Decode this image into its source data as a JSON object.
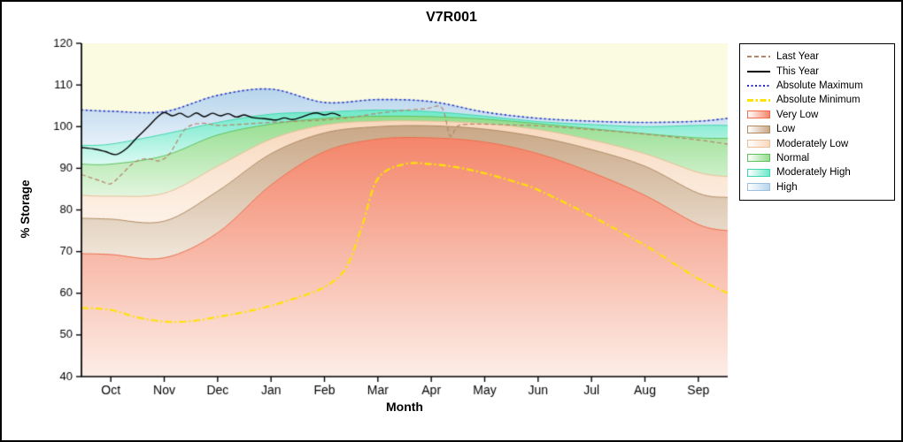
{
  "chart_data": {
    "type": "area",
    "title": "V7R001",
    "xlabel": "Month",
    "ylabel": "% Storage",
    "ylim": [
      40,
      120
    ],
    "xlim": [
      -0.55,
      11.55
    ],
    "yticks": [
      40,
      50,
      60,
      70,
      80,
      90,
      100,
      110,
      120
    ],
    "x_tick_labels": [
      "Oct",
      "Nov",
      "Dec",
      "Jan",
      "Feb",
      "Mar",
      "Apr",
      "May",
      "Jun",
      "Jul",
      "Aug",
      "Sep"
    ],
    "grid": false,
    "legend_position": "outside-right",
    "plot_bg": "#fafbe0",
    "axis_color": "#000000",
    "band_x": [
      -0.55,
      0,
      1,
      2,
      3,
      4,
      5,
      6,
      7,
      8,
      9,
      10,
      11,
      11.55
    ],
    "bands": [
      {
        "name": "Very Low",
        "fill": "#f4866b",
        "fill_light": "#fdeee8",
        "stroke": "#ef6b4a",
        "top": [
          69.5,
          69.3,
          68.5,
          74.5,
          86,
          94,
          97,
          97.3,
          96.3,
          93.5,
          89,
          83.5,
          76.5,
          75
        ]
      },
      {
        "name": "Low",
        "fill": "#c9a887",
        "fill_light": "#f0e6da",
        "stroke": "#b08a63",
        "top": [
          78,
          77.8,
          77.3,
          84.5,
          93.5,
          98.5,
          100,
          100.2,
          99.4,
          97.5,
          94.5,
          90.5,
          84,
          83
        ]
      },
      {
        "name": "Moderately Low",
        "fill": "#f8d9be",
        "fill_light": "#fdf2e8",
        "stroke": "#eabf97",
        "top": [
          83.5,
          83.3,
          84,
          90.5,
          97,
          100.4,
          101.3,
          101.3,
          100.7,
          99.3,
          96.8,
          93.5,
          89,
          88
        ]
      },
      {
        "name": "Normal",
        "fill": "#93dd8d",
        "fill_light": "#e2f6df",
        "stroke": "#5cc25c",
        "top": [
          91,
          91,
          93,
          98,
          100.6,
          102,
          102.5,
          102.4,
          101.8,
          100.7,
          99.5,
          98.3,
          97.3,
          97.2
        ]
      },
      {
        "name": "Moderately High",
        "fill": "#6fe9c9",
        "fill_light": "#dcfaf3",
        "stroke": "#3fd6ae",
        "top": [
          95.5,
          95.8,
          98.2,
          101,
          103,
          103.5,
          104,
          103.6,
          102.5,
          101.2,
          100.5,
          100,
          100.3,
          100.3
        ]
      },
      {
        "name": "High",
        "fill": "#b7d5ec",
        "fill_light": "#e8f1fa",
        "stroke": "#9abfe0",
        "top": [
          104,
          103.7,
          103.6,
          107.5,
          109,
          105.8,
          106.5,
          106,
          103.5,
          102,
          101.3,
          101,
          101.3,
          102
        ]
      }
    ],
    "lines": [
      {
        "name": "Absolute Maximum",
        "color": "#2828cc",
        "dash": [
          2,
          3
        ],
        "width": 1.6,
        "x": [
          -0.55,
          0,
          1,
          2,
          3,
          4,
          5,
          6,
          7,
          8,
          9,
          10,
          11,
          11.55
        ],
        "y": [
          104,
          103.7,
          103.6,
          107.5,
          109,
          105.8,
          106.5,
          106,
          103.5,
          102,
          101.3,
          101,
          101.3,
          102
        ]
      },
      {
        "name": "Absolute Minimum",
        "color": "#ffe205",
        "dash": [
          8,
          3,
          2,
          3
        ],
        "width": 2.2,
        "x": [
          -0.55,
          0,
          0.5,
          1,
          1.5,
          2,
          2.5,
          3,
          3.5,
          4,
          4.4,
          4.7,
          5,
          5.5,
          6,
          6.5,
          7,
          7.5,
          8,
          9,
          10,
          10.5,
          11,
          11.55
        ],
        "y": [
          56.5,
          56,
          54.2,
          53.2,
          53.3,
          54.3,
          55.5,
          57,
          59,
          61.5,
          66,
          76,
          87.5,
          91,
          91,
          90.2,
          88.8,
          87,
          84.8,
          78.5,
          71.5,
          67.5,
          63.5,
          60
        ]
      },
      {
        "name": "Last Year",
        "color": "#b5846b",
        "dash": [
          5,
          3
        ],
        "width": 1.2,
        "x": [
          -0.55,
          -0.2,
          0,
          0.2,
          0.45,
          0.7,
          0.9,
          1.1,
          1.4,
          1.7,
          2,
          2.5,
          3,
          3.5,
          4,
          4.5,
          5,
          5.5,
          5.9,
          6.2,
          6.35,
          6.5,
          6.75,
          7,
          7.5,
          8,
          9,
          10,
          11,
          11.55
        ],
        "y": [
          88.5,
          87,
          86.3,
          88.5,
          91.5,
          92.3,
          91.8,
          93.5,
          99.5,
          100.8,
          100.3,
          100.6,
          101,
          101.3,
          101.6,
          102.2,
          103.2,
          103.9,
          104.3,
          104.5,
          97.8,
          100.2,
          100.6,
          100.6,
          100.4,
          100.2,
          99.3,
          98.2,
          96.8,
          95.8
        ]
      },
      {
        "name": "This Year",
        "color": "#000000",
        "dash": [],
        "width": 1.4,
        "x": [
          -0.55,
          -0.3,
          -0.1,
          0.1,
          0.3,
          0.5,
          0.7,
          0.85,
          1.0,
          1.15,
          1.3,
          1.45,
          1.6,
          1.75,
          1.9,
          2.05,
          2.2,
          2.35,
          2.5,
          2.65,
          2.8,
          2.95,
          3.1,
          3.25,
          3.4,
          3.55,
          3.7,
          3.85,
          4.0,
          4.15,
          4.3
        ],
        "y": [
          95,
          94.6,
          94,
          93.3,
          94.8,
          97.5,
          100,
          102,
          103.4,
          102.6,
          103.2,
          102.3,
          103.3,
          102.4,
          103.2,
          102.6,
          103.1,
          102.3,
          102.8,
          102.2,
          102,
          101.8,
          101.6,
          102.1,
          101.7,
          102.2,
          102.9,
          103.3,
          102.8,
          103.2,
          102.6
        ]
      }
    ],
    "legend": [
      {
        "label": "Last Year",
        "type": "line",
        "color": "#b5846b",
        "pattern": "dashed",
        "thickness": 2
      },
      {
        "label": "This Year",
        "type": "line",
        "color": "#000000",
        "pattern": "solid",
        "thickness": 2
      },
      {
        "label": "Absolute Maximum",
        "type": "line",
        "color": "#2828cc",
        "pattern": "dotted",
        "thickness": 2
      },
      {
        "label": "Absolute Minimum",
        "type": "line",
        "color": "#ffe205",
        "pattern": "dashdot",
        "thickness": 3
      },
      {
        "label": "Very Low",
        "type": "band",
        "color": "#f4866b",
        "stroke": "#ef6b4a"
      },
      {
        "label": "Low",
        "type": "band",
        "color": "#c9a887",
        "stroke": "#b08a63"
      },
      {
        "label": "Moderately Low",
        "type": "band",
        "color": "#f8d9be",
        "stroke": "#eabf97"
      },
      {
        "label": "Normal",
        "type": "band",
        "color": "#93dd8d",
        "stroke": "#5cc25c"
      },
      {
        "label": "Moderately High",
        "type": "band",
        "color": "#6fe9c9",
        "stroke": "#3fd6ae"
      },
      {
        "label": "High",
        "type": "band",
        "color": "#b7d5ec",
        "stroke": "#9abfe0"
      }
    ]
  }
}
